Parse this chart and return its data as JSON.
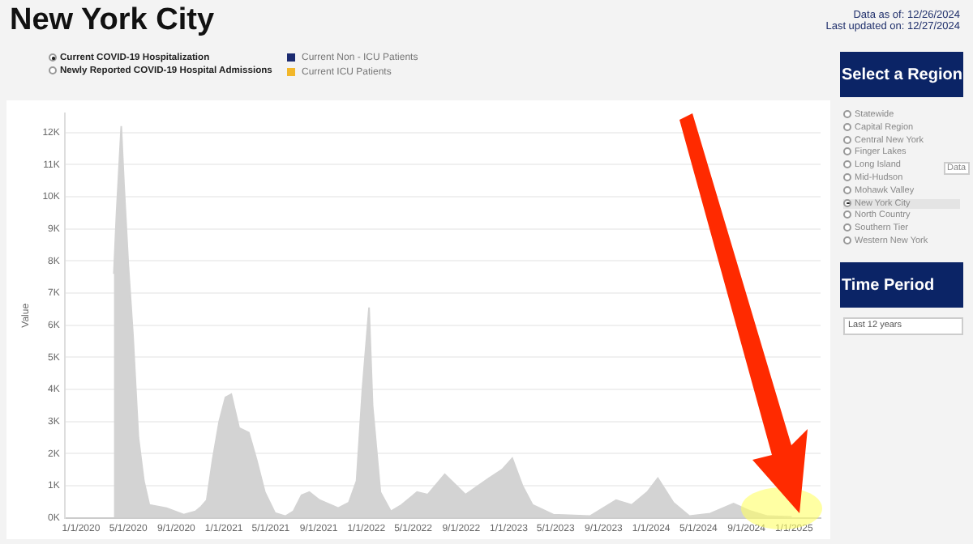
{
  "chart_data": {
    "type": "area",
    "title": "New York City",
    "ylabel": "Value",
    "color": "#d3d3d3",
    "grid": "y",
    "x": [
      "2020-03-25",
      "2020-04-01",
      "2020-04-13",
      "2020-04-20",
      "2020-05-01",
      "2020-05-13",
      "2020-05-27",
      "2020-06-10",
      "2020-06-24",
      "2020-08-07",
      "2020-09-20",
      "2020-10-20",
      "2020-11-04",
      "2020-11-18",
      "2020-12-03",
      "2020-12-20",
      "2021-01-05",
      "2021-01-20",
      "2021-02-09",
      "2021-03-06",
      "2021-03-26",
      "2021-04-16",
      "2021-05-12",
      "2021-06-08",
      "2021-06-28",
      "2021-07-19",
      "2021-08-08",
      "2021-09-03",
      "2021-10-21",
      "2021-11-17",
      "2021-12-07",
      "2021-12-22",
      "2022-01-08",
      "2022-01-17",
      "2022-02-06",
      "2022-03-05",
      "2022-04-01",
      "2022-05-11",
      "2022-06-07",
      "2022-07-21",
      "2022-09-12",
      "2022-10-22",
      "2022-11-11",
      "2022-12-15",
      "2023-01-10",
      "2023-02-05",
      "2023-03-03",
      "2023-04-25",
      "2023-07-28",
      "2023-10-03",
      "2023-11-12",
      "2023-12-22",
      "2024-01-18",
      "2024-02-27",
      "2024-04-08",
      "2024-05-31",
      "2024-07-30",
      "2024-09-09",
      "2024-10-25",
      "2024-12-26"
    ],
    "values": [
      7600,
      9500,
      12200,
      10400,
      7900,
      5700,
      2500,
      1150,
      400,
      300,
      100,
      200,
      350,
      550,
      1800,
      3000,
      3750,
      3850,
      2800,
      2650,
      1800,
      800,
      150,
      50,
      200,
      700,
      800,
      550,
      300,
      470,
      1150,
      4000,
      6550,
      3500,
      800,
      200,
      400,
      800,
      720,
      1350,
      720,
      1060,
      1230,
      1500,
      1850,
      1000,
      400,
      100,
      50,
      550,
      400,
      800,
      1230,
      470,
      50,
      130,
      440,
      220,
      50,
      30
    ],
    "xlim": [
      "2019-11-20",
      "2025-03-10"
    ],
    "xticks": [
      {
        "value": "2020-01-01",
        "label": "1/1/2020"
      },
      {
        "value": "2020-05-01",
        "label": "5/1/2020"
      },
      {
        "value": "2020-09-01",
        "label": "9/1/2020"
      },
      {
        "value": "2021-01-01",
        "label": "1/1/2021"
      },
      {
        "value": "2021-05-01",
        "label": "5/1/2021"
      },
      {
        "value": "2021-09-01",
        "label": "9/1/2021"
      },
      {
        "value": "2022-01-01",
        "label": "1/1/2022"
      },
      {
        "value": "2022-05-01",
        "label": "5/1/2022"
      },
      {
        "value": "2022-09-01",
        "label": "9/1/2022"
      },
      {
        "value": "2023-01-01",
        "label": "1/1/2023"
      },
      {
        "value": "2023-05-01",
        "label": "5/1/2023"
      },
      {
        "value": "2023-09-01",
        "label": "9/1/2023"
      },
      {
        "value": "2024-01-01",
        "label": "1/1/2024"
      },
      {
        "value": "2024-05-01",
        "label": "5/1/2024"
      },
      {
        "value": "2024-09-01",
        "label": "9/1/2024"
      },
      {
        "value": "2025-01-01",
        "label": "1/1/2025"
      }
    ],
    "ylim": [
      0,
      12600
    ],
    "yticks": [
      {
        "value": 0,
        "label": "0K"
      },
      {
        "value": 1000,
        "label": "1K"
      },
      {
        "value": 2000,
        "label": "2K"
      },
      {
        "value": 3000,
        "label": "3K"
      },
      {
        "value": 4000,
        "label": "4K"
      },
      {
        "value": 5000,
        "label": "5K"
      },
      {
        "value": 6000,
        "label": "6K"
      },
      {
        "value": 7000,
        "label": "7K"
      },
      {
        "value": 8000,
        "label": "8K"
      },
      {
        "value": 9000,
        "label": "9K"
      },
      {
        "value": 10000,
        "label": "10K"
      },
      {
        "value": 11000,
        "label": "11K"
      },
      {
        "value": 12000,
        "label": "12K"
      }
    ],
    "annotations": [
      "Data as of: 12/26/2024",
      "Last updated on: 12/27/2024",
      "Current COVID-19 Hospitalization",
      "Newly Reported COVID-19 Hospital Admissions",
      "Current Non - ICU Patients",
      "Current ICU Patients",
      "Select a Region",
      "Statewide",
      "Capital Region",
      "Central New York",
      "Finger Lakes",
      "Long Island",
      "Mid-Hudson",
      "Mohawk Valley",
      "New York City",
      "North Country",
      "Southern Tier",
      "Western New York",
      "Time Period",
      "Last 12 years",
      "Data"
    ]
  }
}
